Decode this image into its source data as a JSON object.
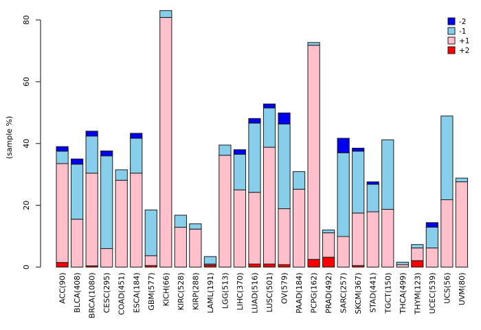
{
  "chart_data": {
    "type": "bar",
    "stacked": true,
    "title": "",
    "xlabel": "",
    "ylabel": "(sample %)",
    "ylim": [
      0,
      80
    ],
    "y_ticks": [
      0,
      20,
      40,
      60,
      80
    ],
    "grid": false,
    "legend_position": "top-right",
    "legend_order": [
      "-2",
      "-1",
      "+1",
      "+2"
    ],
    "series_order_bottom_to_top": [
      "+2",
      "+1",
      "-1",
      "-2"
    ],
    "categories": [
      "ACC(90)",
      "BLCA(408)",
      "BRCA(1080)",
      "CESC(295)",
      "COAD(451)",
      "ESCA(184)",
      "GBM(577)",
      "KICH(66)",
      "KIRC(528)",
      "KIRP(288)",
      "LAML(191)",
      "LGG(513)",
      "LIHC(370)",
      "LUAD(516)",
      "LUSC(501)",
      "OV(579)",
      "PAAD(184)",
      "PCPG(162)",
      "PRAD(492)",
      "SARC(257)",
      "SKCM(367)",
      "STAD(441)",
      "TGCT(150)",
      "THCA(499)",
      "THYM(123)",
      "UCEC(539)",
      "UCS(56)",
      "UVM(80)"
    ],
    "series": [
      {
        "name": "+2",
        "color": "#FF0000",
        "values": [
          1.5,
          0,
          0.4,
          0,
          0,
          0,
          0.5,
          0,
          0,
          0,
          0.7,
          0,
          0,
          1.0,
          1.0,
          0.8,
          0,
          2.5,
          3.2,
          0,
          0.5,
          0,
          0,
          0,
          2.1,
          0,
          0,
          0
        ]
      },
      {
        "name": "+1",
        "color": "#FFC0CB",
        "values": [
          32.0,
          15.5,
          30.0,
          6.0,
          28.1,
          30.4,
          3.2,
          80.8,
          12.9,
          12.3,
          0.3,
          36.2,
          25.0,
          23.2,
          37.8,
          18.1,
          25.2,
          69.3,
          7.9,
          9.9,
          17.0,
          17.9,
          18.7,
          0.8,
          4.1,
          6.2,
          21.8,
          27.6
        ]
      },
      {
        "name": "-1",
        "color": "#87CEEB",
        "values": [
          4.0,
          17.8,
          12.0,
          30.0,
          3.4,
          11.3,
          14.8,
          2.2,
          3.9,
          1.7,
          2.4,
          3.3,
          11.5,
          22.4,
          12.7,
          27.4,
          5.7,
          0.9,
          0.9,
          27.1,
          20.0,
          8.9,
          22.5,
          0.8,
          1.1,
          6.7,
          27.1,
          1.2
        ]
      },
      {
        "name": "-2",
        "color": "#0000EE",
        "values": [
          1.5,
          1.7,
          1.6,
          1.6,
          0,
          1.6,
          0,
          0,
          0,
          0,
          0,
          0,
          1.5,
          1.5,
          1.3,
          3.6,
          0,
          0,
          0,
          4.7,
          1.0,
          0.8,
          0,
          0,
          0,
          1.5,
          0,
          0
        ]
      }
    ]
  },
  "style": {
    "border_color": "#1a1a1a",
    "axis_color": "#333333",
    "text_color": "#000000",
    "background": "#ffffff"
  }
}
